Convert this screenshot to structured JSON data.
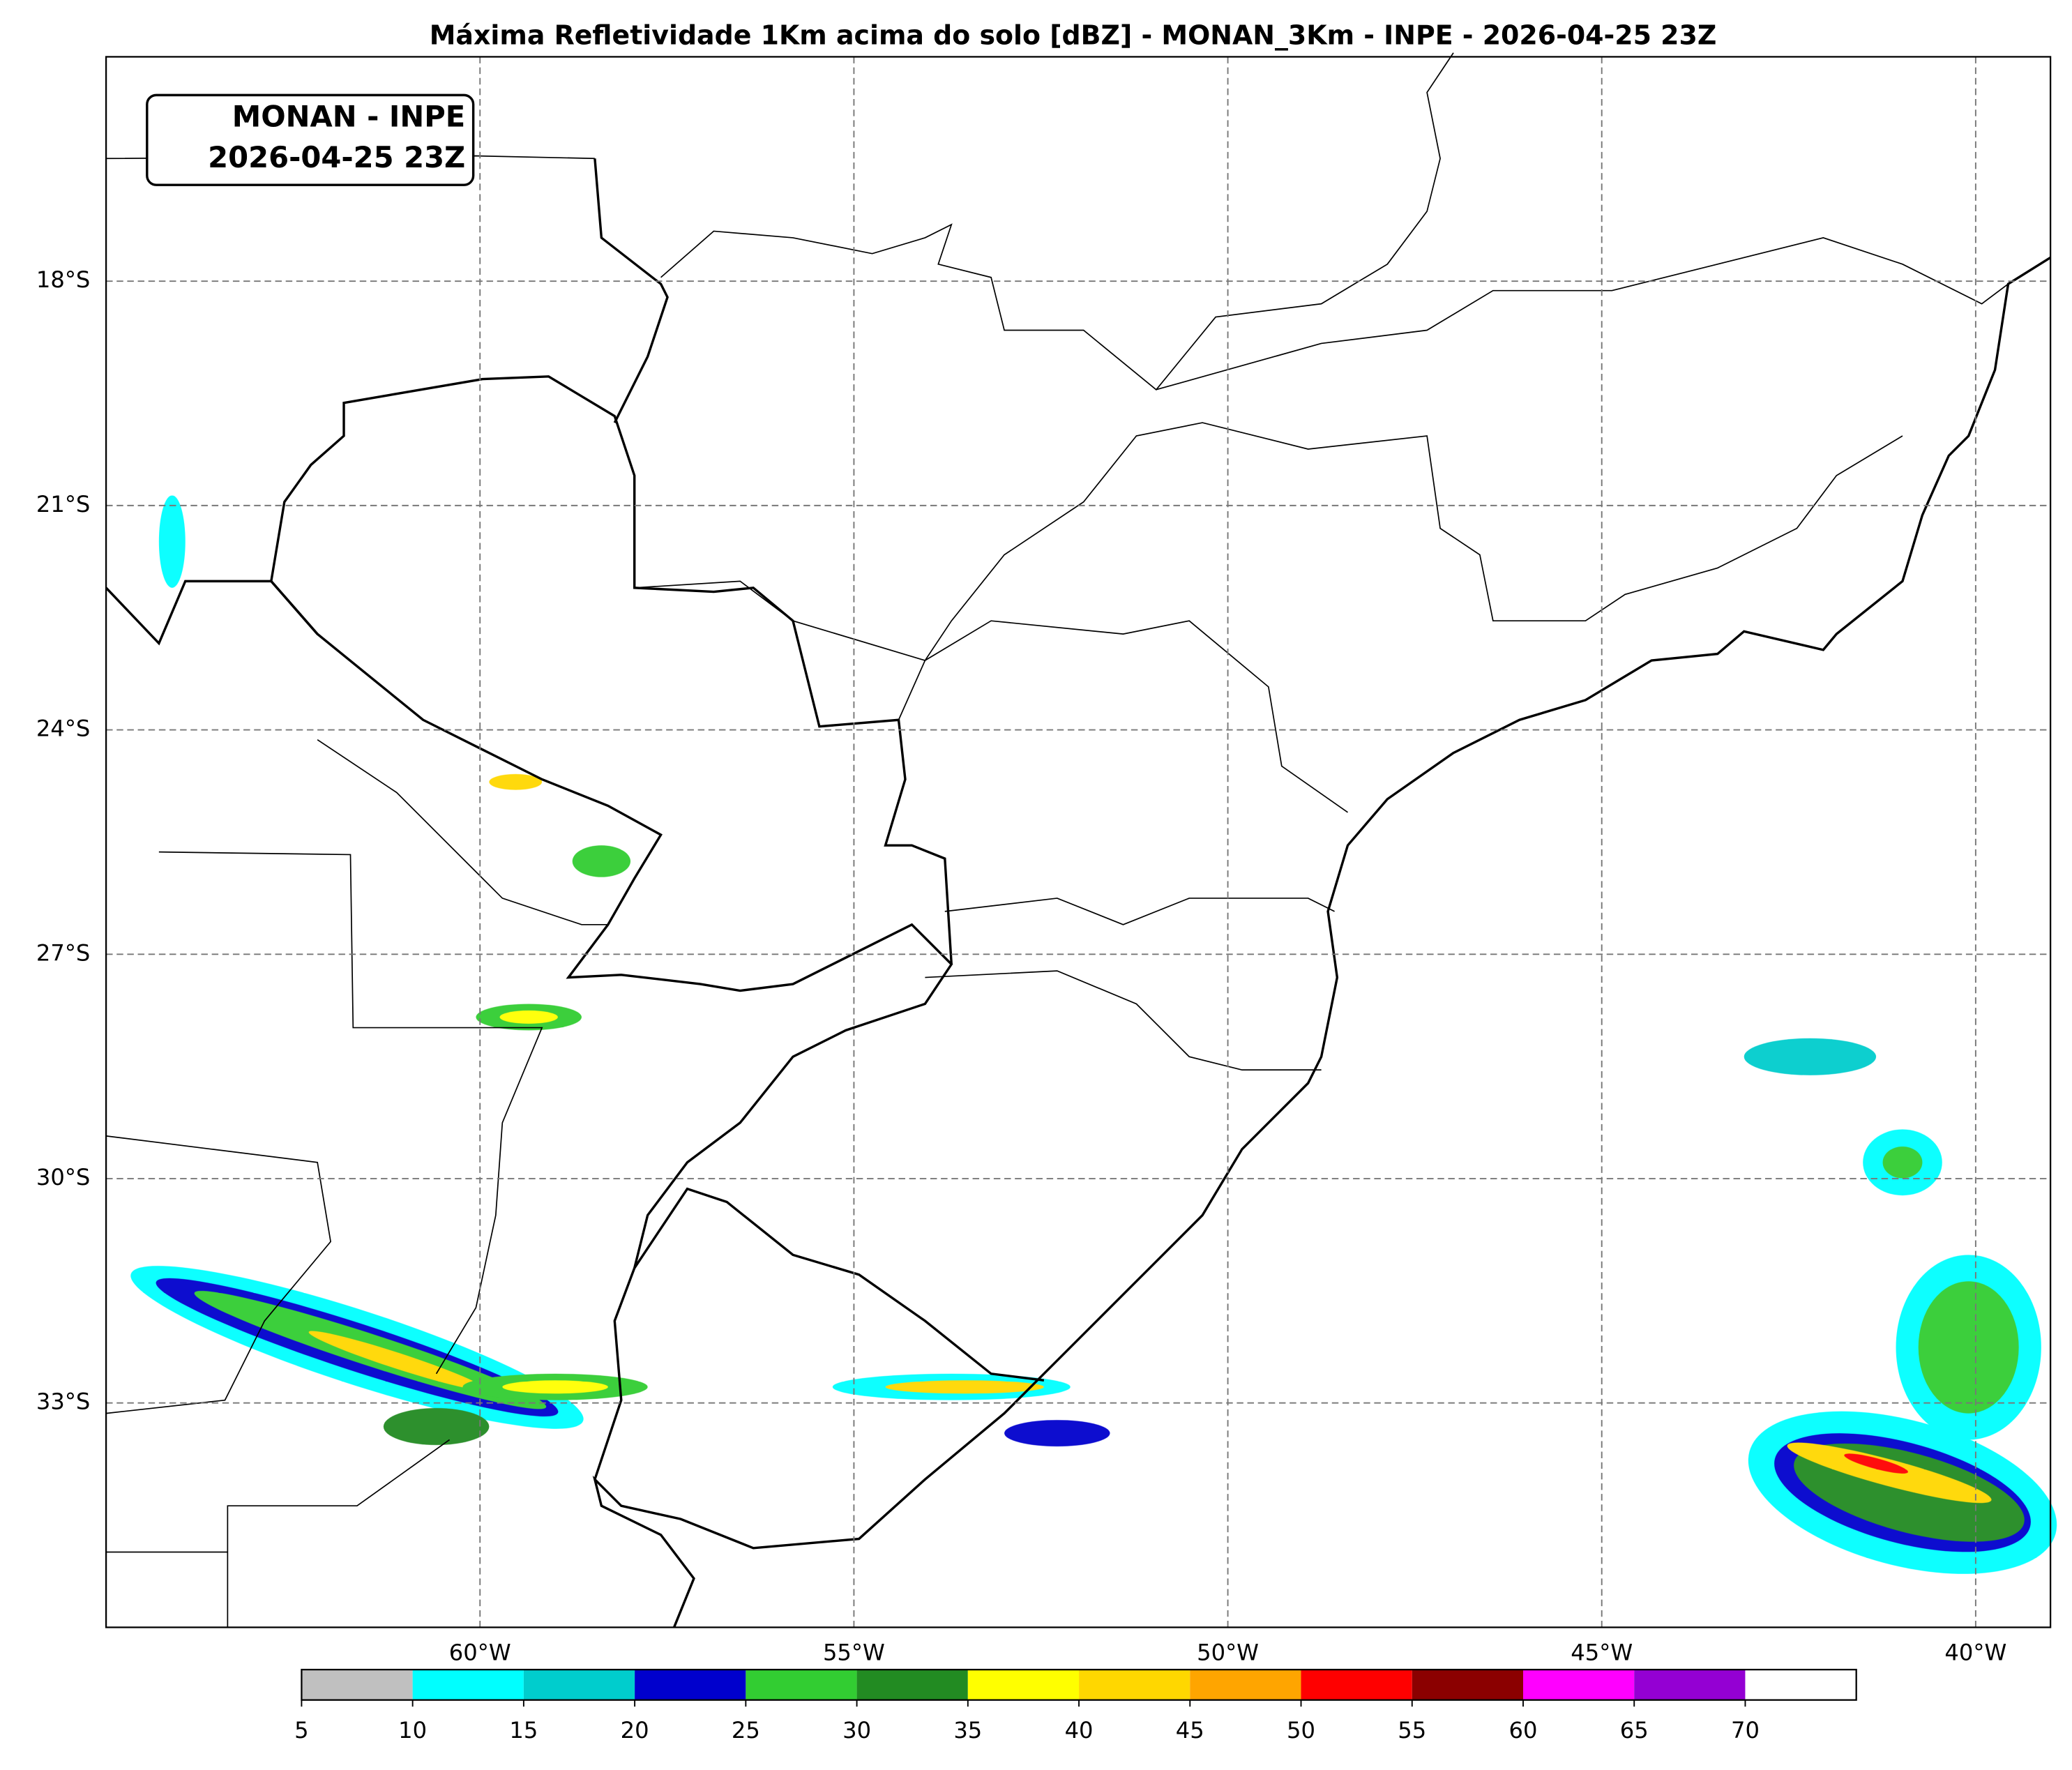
{
  "map": {
    "title": "Máxima Refletividade 1Km acima do solo [dBZ] - MONAN_3Km - INPE - 2026-04-25 23Z",
    "info_box": [
      "MONAN - INPE",
      "2026-04-25 23Z"
    ],
    "lon_range": [
      -65,
      -39
    ],
    "lat_range": [
      -36,
      -15
    ],
    "grid": true,
    "lon_ticks": [
      {
        "value": -60,
        "label": "60°W"
      },
      {
        "value": -55,
        "label": "55°W"
      },
      {
        "value": -50,
        "label": "50°W"
      },
      {
        "value": -45,
        "label": "45°W"
      },
      {
        "value": -40,
        "label": "40°W"
      }
    ],
    "lat_ticks": [
      {
        "value": -18,
        "label": "18°S"
      },
      {
        "value": -21,
        "label": "21°S"
      },
      {
        "value": -24,
        "label": "24°S"
      },
      {
        "value": -27,
        "label": "27°S"
      },
      {
        "value": -30,
        "label": "30°S"
      },
      {
        "value": -33,
        "label": "33°S"
      }
    ],
    "colorbar": {
      "ticks": [
        5,
        10,
        15,
        20,
        25,
        30,
        35,
        40,
        45,
        50,
        55,
        60,
        65,
        70
      ],
      "colors": [
        "#c0c0c0",
        "#00ffff",
        "#00cdcd",
        "#0000cd",
        "#32cd32",
        "#228b22",
        "#ffff00",
        "#ffd700",
        "#ffa500",
        "#ff0000",
        "#8b0000",
        "#ff00ff",
        "#9400d3",
        "#ffffff"
      ]
    }
  }
}
